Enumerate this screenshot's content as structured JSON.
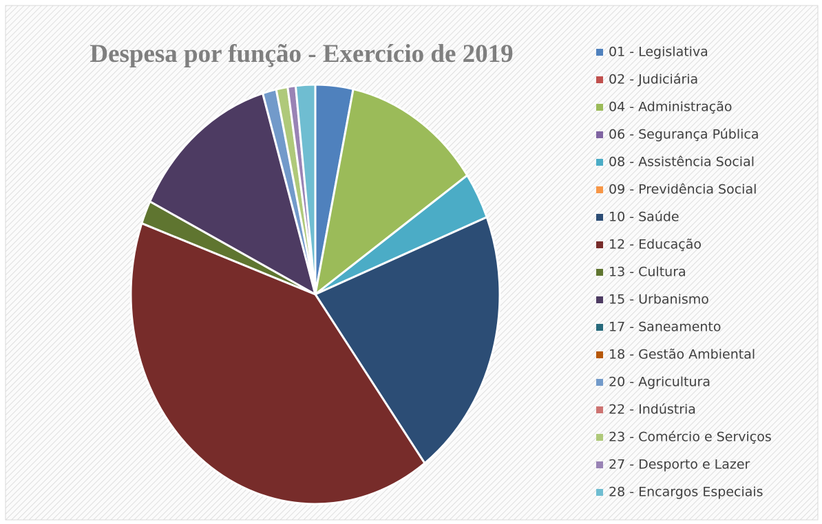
{
  "chart_data": {
    "type": "pie",
    "title": "Despesa por função - Exercício de 2019",
    "categories": [
      "01 - Legislativa",
      "02 - Judiciária",
      "04 - Administração",
      "06 - Segurança Pública",
      "08 - Assistência Social",
      "09 - Previdência Social",
      "10 - Saúde",
      "12 - Educação",
      "13 - Cultura",
      "15 - Urbanismo",
      "17 - Saneamento",
      "18 - Gestão Ambiental",
      "20 - Agricultura",
      "22 - Indústria",
      "23 - Comércio e Serviços",
      "27 - Desporto e Lazer",
      "28 - Encargos Especiais"
    ],
    "values": [
      3.3,
      0,
      12.1,
      0,
      3.6,
      0,
      20.9,
      40.6,
      1.8,
      13.1,
      0,
      0,
      1.2,
      0,
      1.0,
      0.7,
      1.7
    ],
    "colors": [
      "#4f81bd",
      "#c0504d",
      "#9bbb59",
      "#8064a2",
      "#4bacc6",
      "#f79646",
      "#2c4d75",
      "#772c2a",
      "#5f7530",
      "#4d3b62",
      "#276a7c",
      "#b65708",
      "#729aca",
      "#cd7371",
      "#afc97a",
      "#9983b5",
      "#6fbdd1"
    ],
    "legend": "right"
  }
}
